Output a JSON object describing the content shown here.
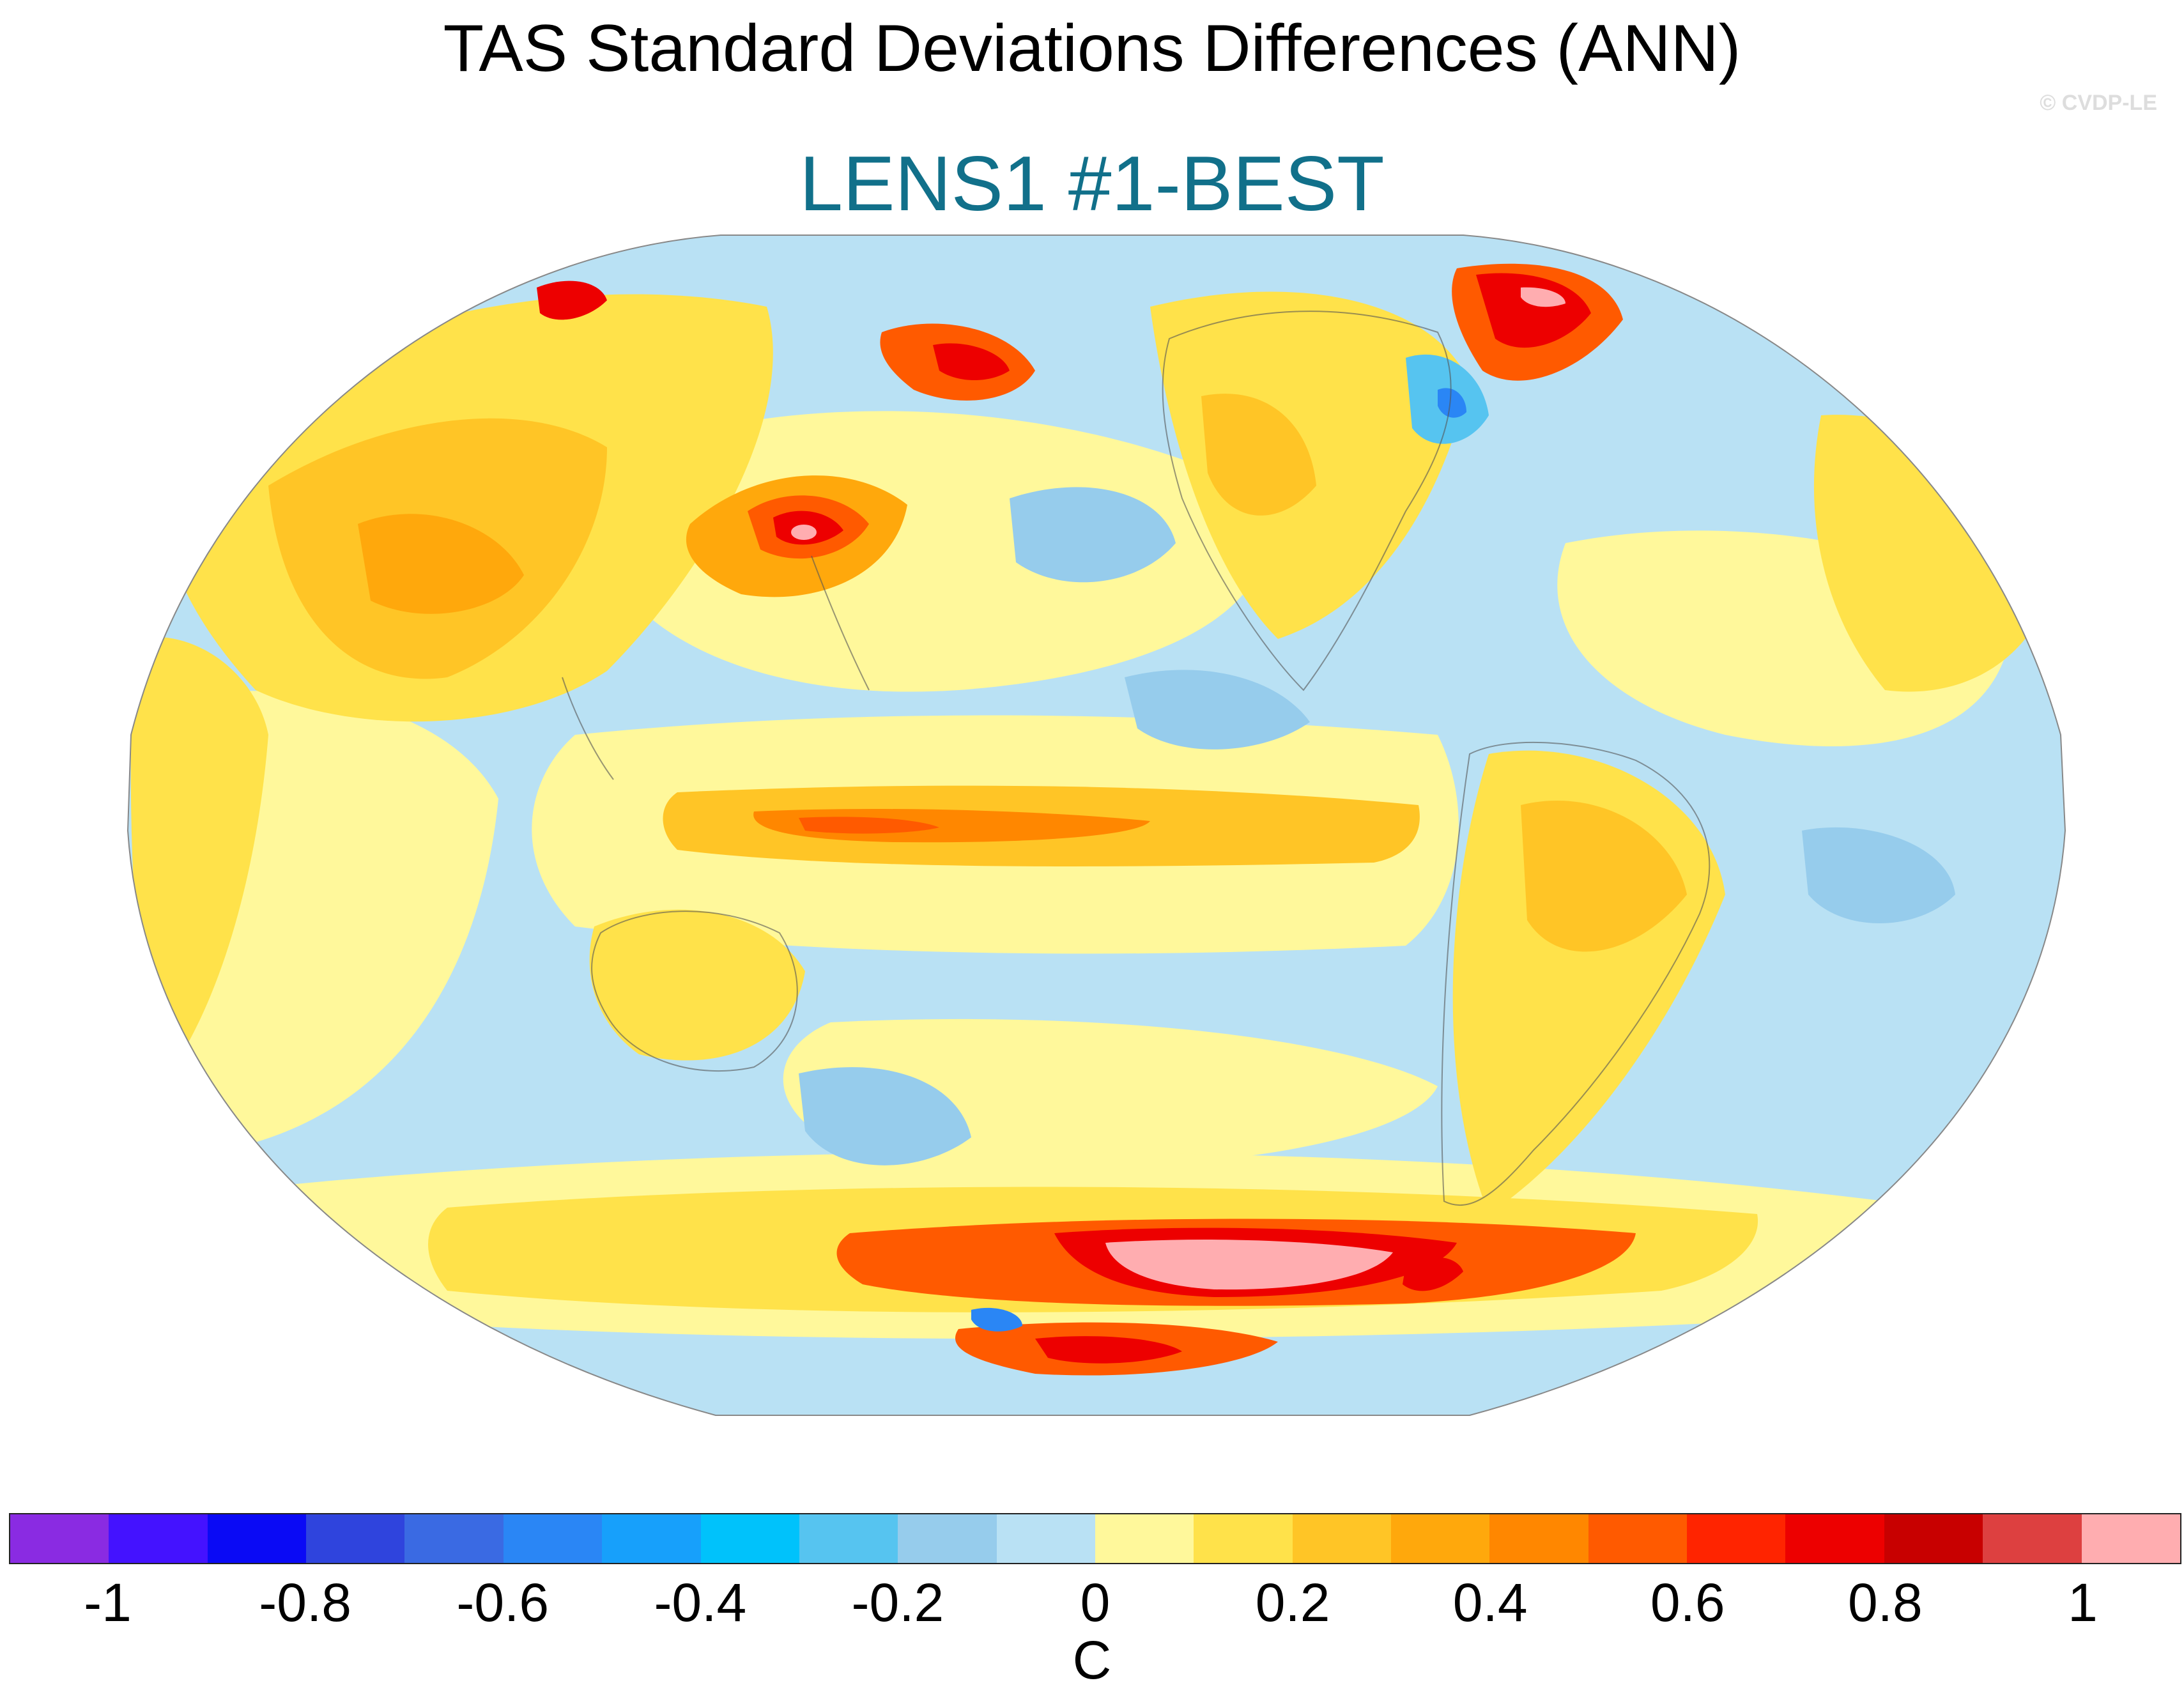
{
  "title": "TAS Standard Deviations Differences (ANN)",
  "subtitle": "LENS1 #1-BEST",
  "credit": "© CVDP-LE",
  "colorbar": {
    "unit": "C",
    "colors": [
      "#8a2be2",
      "#4412ff",
      "#0a0af5",
      "#2f44dd",
      "#3a6ae3",
      "#2a86f5",
      "#17a0fb",
      "#00c2fb",
      "#56c4f0",
      "#96ccec",
      "#b9e1f4",
      "#fff89b",
      "#ffe24a",
      "#ffc526",
      "#ffa80c",
      "#ff8700",
      "#ff5a00",
      "#ff2400",
      "#ed0000",
      "#c80000",
      "#dd4040",
      "#ffadb0"
    ],
    "tick_labels": [
      "-1",
      "-0.8",
      "-0.6",
      "-0.4",
      "-0.2",
      "0",
      "0.2",
      "0.4",
      "0.6",
      "0.8",
      "1"
    ]
  },
  "map": {
    "projection": "Robinson (Pacific-centered)",
    "background_color": "#b9e1f4",
    "regions": [
      {
        "name": "equatorial-pacific-band",
        "color": "#ffc526"
      },
      {
        "name": "equatorial-pacific-core",
        "color": "#ff8700"
      },
      {
        "name": "kamchatka-warm",
        "color": "#ed0000"
      },
      {
        "name": "bering-warm",
        "color": "#ff5a00"
      },
      {
        "name": "greenland-warm",
        "color": "#ed0000"
      },
      {
        "name": "labrador-cool",
        "color": "#2a86f5"
      },
      {
        "name": "southern-ocean-warm",
        "color": "#ff5a00"
      },
      {
        "name": "southern-ocean-core",
        "color": "#ffadb0"
      },
      {
        "name": "antarctic-warm",
        "color": "#ed0000"
      }
    ]
  }
}
